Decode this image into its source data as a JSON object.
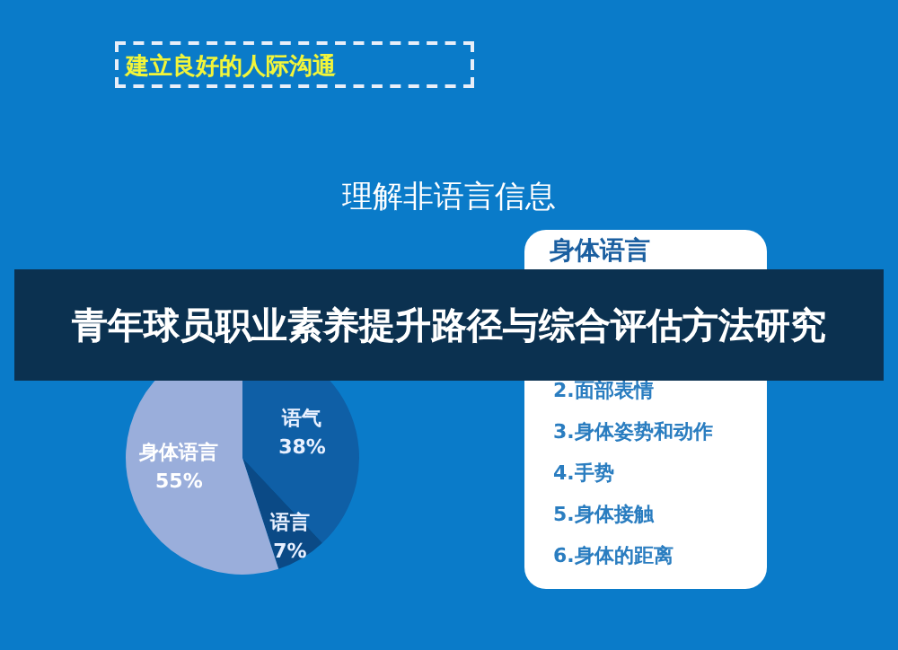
{
  "chart_data": {
    "type": "pie",
    "title": "青年球员职业素养提升路径与综合评估方法研究",
    "subtitle": "理解非语言信息",
    "categories": [
      "语气",
      "语言",
      "身体语言"
    ],
    "values": [
      38,
      7,
      55
    ],
    "colors": [
      "#0f5fa6",
      "#0b4a86",
      "#9aaedb"
    ],
    "value_labels": [
      "38%",
      "7%",
      "55%"
    ],
    "legend": false,
    "annotations": [
      "建立良好的人际沟通",
      "身体语言",
      "2.面部表情",
      "3.身体姿势和动作",
      "4.手势",
      "5.身体接触",
      "6.身体的距离"
    ]
  }
}
